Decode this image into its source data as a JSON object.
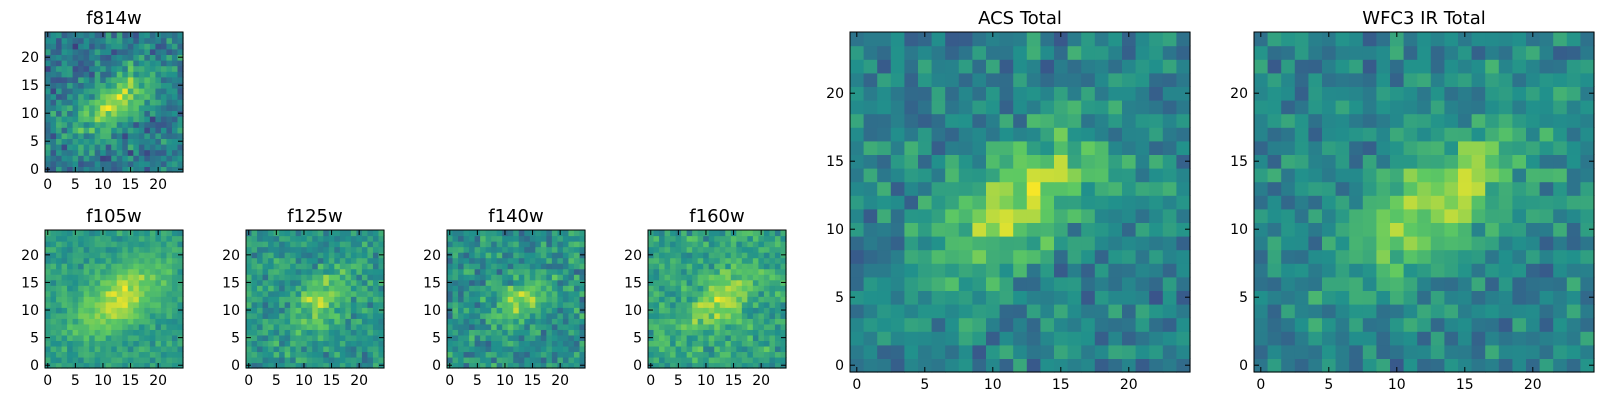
{
  "figure": {
    "colormap": "viridis"
  },
  "colors": {
    "viridis": [
      "#440154",
      "#3b528b",
      "#21918c",
      "#5ec962",
      "#fde725"
    ]
  },
  "chart_data": [
    {
      "type": "heatmap",
      "title": "f814w",
      "xticks": [
        0,
        5,
        10,
        15,
        20
      ],
      "yticks": [
        0,
        5,
        10,
        15,
        20
      ],
      "xlim": [
        0,
        25
      ],
      "ylim": [
        0,
        25
      ],
      "grid_size": 25,
      "source": {
        "peak": [
          12,
          12
        ],
        "angle_deg": 40,
        "sigma_major": 5.5,
        "sigma_minor": 2.4,
        "amplitude": 0.45
      },
      "background": 0.42,
      "noise": 0.24,
      "seed": 11
    },
    {
      "type": "heatmap",
      "title": "f105w",
      "xticks": [
        0,
        5,
        10,
        15,
        20
      ],
      "yticks": [
        0,
        5,
        10,
        15,
        20
      ],
      "xlim": [
        0,
        25
      ],
      "ylim": [
        0,
        25
      ],
      "grid_size": 25,
      "source": {
        "peak": [
          13,
          12
        ],
        "angle_deg": 35,
        "sigma_major": 6.5,
        "sigma_minor": 3.2,
        "amplitude": 0.35
      },
      "background": 0.55,
      "noise": 0.13,
      "seed": 23
    },
    {
      "type": "heatmap",
      "title": "f125w",
      "xticks": [
        0,
        5,
        10,
        15,
        20
      ],
      "yticks": [
        0,
        5,
        10,
        15,
        20
      ],
      "xlim": [
        0,
        25
      ],
      "ylim": [
        0,
        25
      ],
      "grid_size": 25,
      "source": {
        "peak": [
          13,
          12
        ],
        "angle_deg": 45,
        "sigma_major": 4.5,
        "sigma_minor": 2.6,
        "amplitude": 0.3
      },
      "background": 0.52,
      "noise": 0.2,
      "seed": 37
    },
    {
      "type": "heatmap",
      "title": "f140w",
      "xticks": [
        0,
        5,
        10,
        15,
        20
      ],
      "yticks": [
        0,
        5,
        10,
        15,
        20
      ],
      "xlim": [
        0,
        25
      ],
      "ylim": [
        0,
        25
      ],
      "grid_size": 25,
      "source": {
        "peak": [
          13,
          12
        ],
        "angle_deg": 40,
        "sigma_major": 4.0,
        "sigma_minor": 2.2,
        "amplitude": 0.3
      },
      "background": 0.5,
      "noise": 0.22,
      "seed": 41
    },
    {
      "type": "heatmap",
      "title": "f160w",
      "xticks": [
        0,
        5,
        10,
        15,
        20
      ],
      "yticks": [
        0,
        5,
        10,
        15,
        20
      ],
      "xlim": [
        0,
        25
      ],
      "ylim": [
        0,
        25
      ],
      "grid_size": 25,
      "source": {
        "peak": [
          13,
          12
        ],
        "angle_deg": 38,
        "sigma_major": 5.0,
        "sigma_minor": 2.6,
        "amplitude": 0.3
      },
      "background": 0.58,
      "noise": 0.2,
      "seed": 53
    },
    {
      "type": "heatmap",
      "title": "ACS Total",
      "xticks": [
        0,
        5,
        10,
        15,
        20
      ],
      "yticks": [
        0,
        5,
        10,
        15,
        20
      ],
      "xlim": [
        0,
        25
      ],
      "ylim": [
        0,
        25
      ],
      "grid_size": 25,
      "source": {
        "peak": [
          12,
          12
        ],
        "angle_deg": 38,
        "sigma_major": 5.2,
        "sigma_minor": 2.4,
        "amplitude": 0.42
      },
      "background": 0.45,
      "noise": 0.2,
      "seed": 67
    },
    {
      "type": "heatmap",
      "title": "WFC3 IR Total",
      "xticks": [
        0,
        5,
        10,
        15,
        20
      ],
      "yticks": [
        0,
        5,
        10,
        15,
        20
      ],
      "xlim": [
        0,
        25
      ],
      "ylim": [
        0,
        25
      ],
      "grid_size": 25,
      "source": {
        "peak": [
          13,
          12
        ],
        "angle_deg": 38,
        "sigma_major": 5.2,
        "sigma_minor": 2.5,
        "amplitude": 0.42
      },
      "background": 0.45,
      "noise": 0.2,
      "seed": 79
    }
  ]
}
